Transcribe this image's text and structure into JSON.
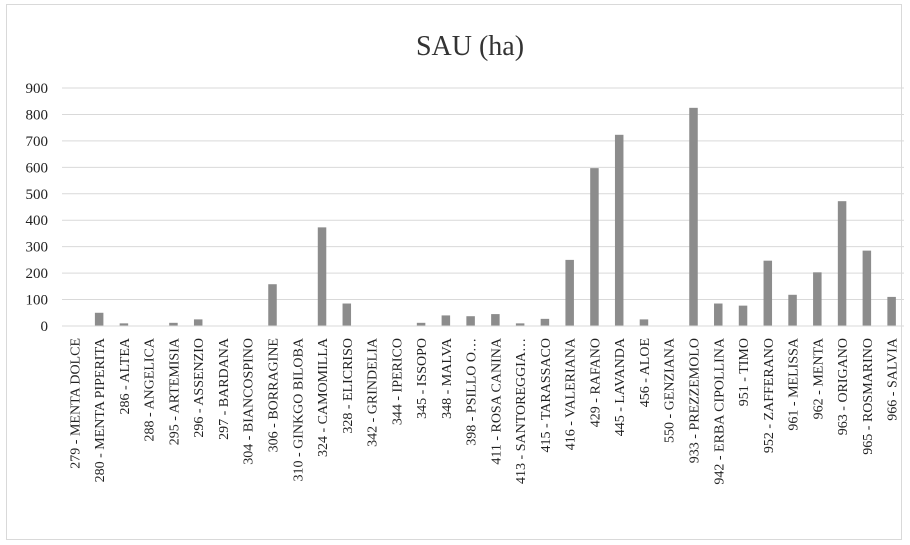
{
  "chart_data": {
    "type": "bar",
    "title": "SAU (ha)",
    "xlabel": "",
    "ylabel": "",
    "ylim": [
      0,
      900
    ],
    "yticks": [
      0,
      100,
      200,
      300,
      400,
      500,
      600,
      700,
      800,
      900
    ],
    "grid": true,
    "legend": "none",
    "bar_color": "#8c8c8c",
    "gridline_color": "#d9d9d9",
    "categories": [
      "279 - MENTA DOLCE",
      "280 - MENTA PIPERITA",
      "286 - ALTEA",
      "288 - ANGELICA",
      "295 - ARTEMISIA",
      "296 - ASSENZIO",
      "297 - BARDANA",
      "304 - BIANCOSPINO",
      "306 - BORRAGINE",
      "310 - GINKGO BILOBA",
      "324 - CAMOMILLA",
      "328 - ELICRISO",
      "342 - GRINDELIA",
      "344 - IPERICO",
      "345 - ISSOPO",
      "348 - MALVA",
      "398 - PSILLO O…",
      "411 - ROSA CANINA",
      "413 - SANTOREGGIA…",
      "415 - TARASSACO",
      "416 - VALERIANA",
      "429 - RAFANO",
      "445 - LAVANDA",
      "456 - ALOE",
      "550 - GENZIANA",
      "933 - PREZZEMOLO",
      "942 - ERBA CIPOLLINA",
      "951 - TIMO",
      "952 - ZAFFERANO",
      "961 - MELISSA",
      "962 - MENTA",
      "963 - ORIGANO",
      "965 - ROSMARINO",
      "966 - SALVIA"
    ],
    "values": [
      0,
      50,
      10,
      0,
      12,
      25,
      0,
      0,
      158,
      0,
      373,
      85,
      0,
      0,
      12,
      40,
      37,
      45,
      10,
      27,
      250,
      597,
      723,
      25,
      0,
      825,
      85,
      77,
      247,
      118,
      203,
      472,
      285,
      110
    ]
  }
}
